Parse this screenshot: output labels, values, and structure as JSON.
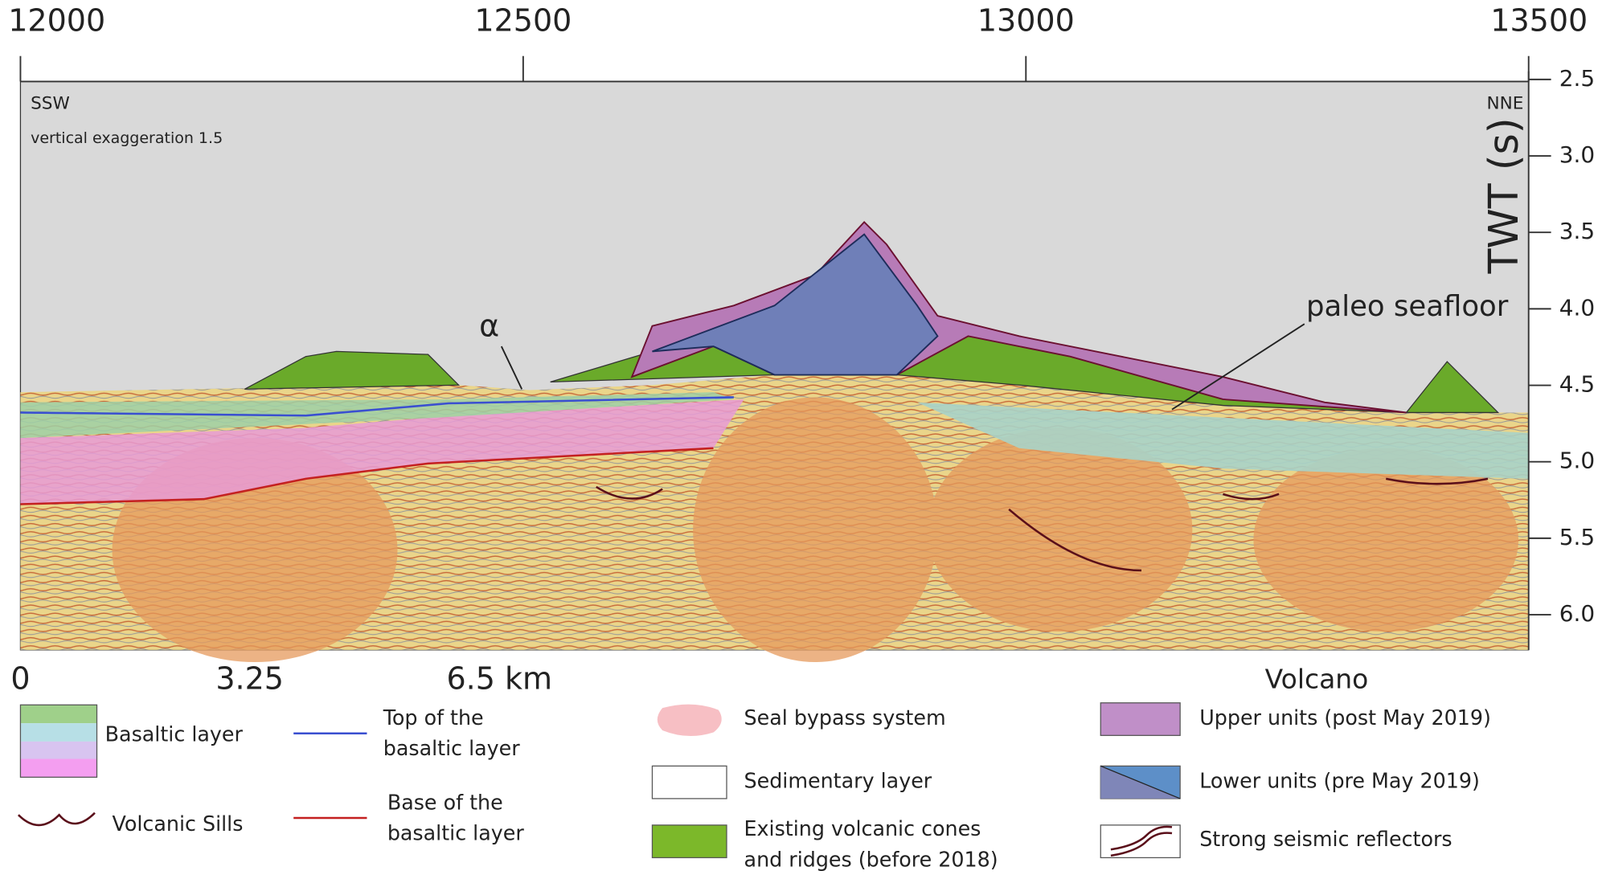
{
  "top_axis": {
    "lim": [
      12000,
      13500
    ],
    "ticks": [
      12000,
      12500,
      13000,
      13500
    ]
  },
  "right_axis": {
    "label": "TWT (s)",
    "lim": [
      2.5,
      6.23
    ],
    "ticks": [
      2.5,
      {
        "value": 3,
        "label": "3.0"
      },
      3.5,
      {
        "value": 4,
        "label": "4.0"
      },
      4.5,
      {
        "value": 5,
        "label": "5.0"
      },
      5.5,
      {
        "value": 6,
        "label": "6.0"
      }
    ]
  },
  "section": {
    "left_label": "SSW",
    "right_label": "NNE",
    "note": "vertical exaggeration 1.5",
    "alpha": "α",
    "paleo": "paleo seafloor"
  },
  "scale_bar": {
    "labels": [
      "0",
      "3.25",
      "6.5 km"
    ]
  },
  "volcano_label": "Volcano",
  "legend": {
    "basaltic": "Basaltic layer",
    "top_basaltic": [
      "Top of the",
      "basaltic layer"
    ],
    "base_basaltic": [
      "Base of the",
      "basaltic layer"
    ],
    "sills": "Volcanic Sills",
    "seal": "Seal bypass system",
    "sedimentary": "Sedimentary layer",
    "cones": [
      "Existing volcanic cones",
      "and ridges (before 2018)"
    ],
    "upper": "Upper units (post May 2019)",
    "lower": "Lower units (pre May 2019)",
    "reflectors": "Strong seismic reflectors"
  }
}
